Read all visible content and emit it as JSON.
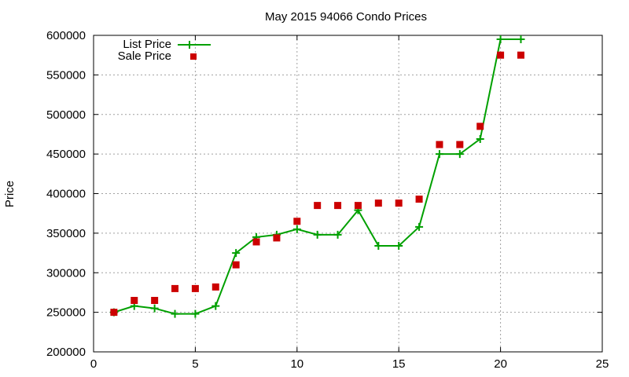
{
  "chart_data": {
    "type": "line",
    "title": "May 2015 94066 Condo Prices",
    "xlabel": "",
    "ylabel": "Price",
    "xlim": [
      0,
      25
    ],
    "ylim": [
      200000,
      600000
    ],
    "xticks": [
      0,
      5,
      10,
      15,
      20,
      25
    ],
    "yticks": [
      200000,
      250000,
      300000,
      350000,
      400000,
      450000,
      500000,
      550000,
      600000
    ],
    "grid": true,
    "legend_position": "top-left",
    "x": [
      1,
      2,
      3,
      4,
      5,
      6,
      7,
      8,
      9,
      10,
      11,
      12,
      13,
      14,
      15,
      16,
      17,
      18,
      19,
      20,
      21
    ],
    "series": [
      {
        "name": "List Price",
        "style": "linespoints",
        "color": "#00a000",
        "values": [
          250000,
          258000,
          255000,
          248000,
          248000,
          258000,
          325000,
          345000,
          348000,
          355000,
          348000,
          348000,
          379000,
          334000,
          334000,
          358000,
          450000,
          450000,
          469000,
          595000,
          595000
        ]
      },
      {
        "name": "Sale Price",
        "style": "points",
        "color": "#cc0000",
        "values": [
          250000,
          265000,
          265000,
          280000,
          280000,
          282000,
          310000,
          339000,
          344000,
          365000,
          385000,
          385000,
          385000,
          388000,
          388000,
          393000,
          462000,
          462000,
          485000,
          575000,
          575000
        ]
      }
    ]
  }
}
